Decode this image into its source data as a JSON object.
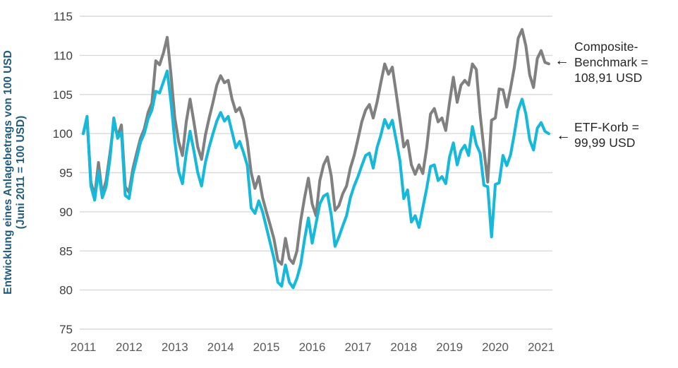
{
  "chart_data": {
    "type": "line",
    "ylabel_line1": "Entwicklung eines Anlagebetrags von 100 USD",
    "ylabel_line2": "(Juni 2011 = 100 USD)",
    "x_tick_labels": [
      "2011",
      "2012",
      "2013",
      "2014",
      "2015",
      "2016",
      "2017",
      "2018",
      "2019",
      "2020",
      "2021"
    ],
    "y_ticks": [
      75,
      80,
      85,
      90,
      95,
      100,
      105,
      110,
      115
    ],
    "ylim": [
      75,
      115
    ],
    "grid": "horizontal-only",
    "colors": {
      "composite": "#808080",
      "etf": "#16b9d9",
      "axis_title": "#1f5b7c",
      "gridline": "#d9d9d9",
      "y_tick_text": "#3f3f3f",
      "x_tick_text": "#595959"
    },
    "series": [
      {
        "name": "Composite-Benchmark",
        "slug": "composite-benchmark-line",
        "color": "#808080",
        "final_value": "108,91 USD",
        "values": [
          100.0,
          101.9,
          93.8,
          92.0,
          96.3,
          92.2,
          94.0,
          97.5,
          101.3,
          99.7,
          101.1,
          93.2,
          92.5,
          95.5,
          97.5,
          99.4,
          100.6,
          102.7,
          103.9,
          109.3,
          108.8,
          110.3,
          112.3,
          107.5,
          102.0,
          99.0,
          97.2,
          101.5,
          104.4,
          101.5,
          98.3,
          96.7,
          99.8,
          102.0,
          104.0,
          106.2,
          107.4,
          106.5,
          106.8,
          104.4,
          102.8,
          103.3,
          101.8,
          99.0,
          95.0,
          93.0,
          94.5,
          91.8,
          90.0,
          88.3,
          86.5,
          83.8,
          83.3,
          86.6,
          84.0,
          83.4,
          85.0,
          88.9,
          91.8,
          94.3,
          91.0,
          89.5,
          94.0,
          96.0,
          97.0,
          94.6,
          90.2,
          90.8,
          92.3,
          93.3,
          95.6,
          97.2,
          99.3,
          101.5,
          103.0,
          103.7,
          102.0,
          104.0,
          106.5,
          108.9,
          107.6,
          108.5,
          105.2,
          101.8,
          98.3,
          99.1,
          96.0,
          94.8,
          96.0,
          94.9,
          98.2,
          102.5,
          103.2,
          101.5,
          102.0,
          100.4,
          104.0,
          107.2,
          104.0,
          106.2,
          106.8,
          106.2,
          108.9,
          108.2,
          102.5,
          98.0,
          93.8,
          101.7,
          102.0,
          105.7,
          105.6,
          103.4,
          105.8,
          108.5,
          112.2,
          113.3,
          111.2,
          107.5,
          105.9,
          109.6,
          110.6,
          109.1,
          108.91
        ]
      },
      {
        "name": "ETF-Korb",
        "slug": "etf-korb-line",
        "color": "#16b9d9",
        "final_value": "99,99 USD",
        "values": [
          100.0,
          102.2,
          93.3,
          91.5,
          95.2,
          91.8,
          93.2,
          96.8,
          102.0,
          99.4,
          100.2,
          92.1,
          91.7,
          94.8,
          96.8,
          98.9,
          100.0,
          101.9,
          103.0,
          105.4,
          105.2,
          106.6,
          108.0,
          104.0,
          99.0,
          95.2,
          93.6,
          97.5,
          100.3,
          97.8,
          95.0,
          93.3,
          96.3,
          98.3,
          100.0,
          101.6,
          102.7,
          101.6,
          102.2,
          100.2,
          98.2,
          99.0,
          97.6,
          95.9,
          90.5,
          89.8,
          91.4,
          90.0,
          88.0,
          86.0,
          84.0,
          81.0,
          80.5,
          83.2,
          81.0,
          80.3,
          81.5,
          83.3,
          86.5,
          89.2,
          86.0,
          88.5,
          91.0,
          92.0,
          92.3,
          89.6,
          85.6,
          86.8,
          88.2,
          89.5,
          91.8,
          93.3,
          94.5,
          95.9,
          97.2,
          97.5,
          95.6,
          98.2,
          99.8,
          101.8,
          100.7,
          101.7,
          99.2,
          96.5,
          91.7,
          92.8,
          88.7,
          89.5,
          88.0,
          90.5,
          93.0,
          95.8,
          96.0,
          94.0,
          94.5,
          93.6,
          97.0,
          98.8,
          96.0,
          97.8,
          98.5,
          97.2,
          100.9,
          98.6,
          97.5,
          93.4,
          93.2,
          86.8,
          93.5,
          93.7,
          97.2,
          95.9,
          97.3,
          100.0,
          103.0,
          104.4,
          102.5,
          99.2,
          97.9,
          100.7,
          101.4,
          100.3,
          99.99
        ]
      }
    ],
    "annotations": [
      {
        "arrow": "←",
        "lines": [
          "Composite-",
          "Benchmark =",
          "108,91 USD"
        ]
      },
      {
        "arrow": "←",
        "lines": [
          "ETF-Korb =",
          "99,99 USD"
        ]
      }
    ]
  }
}
